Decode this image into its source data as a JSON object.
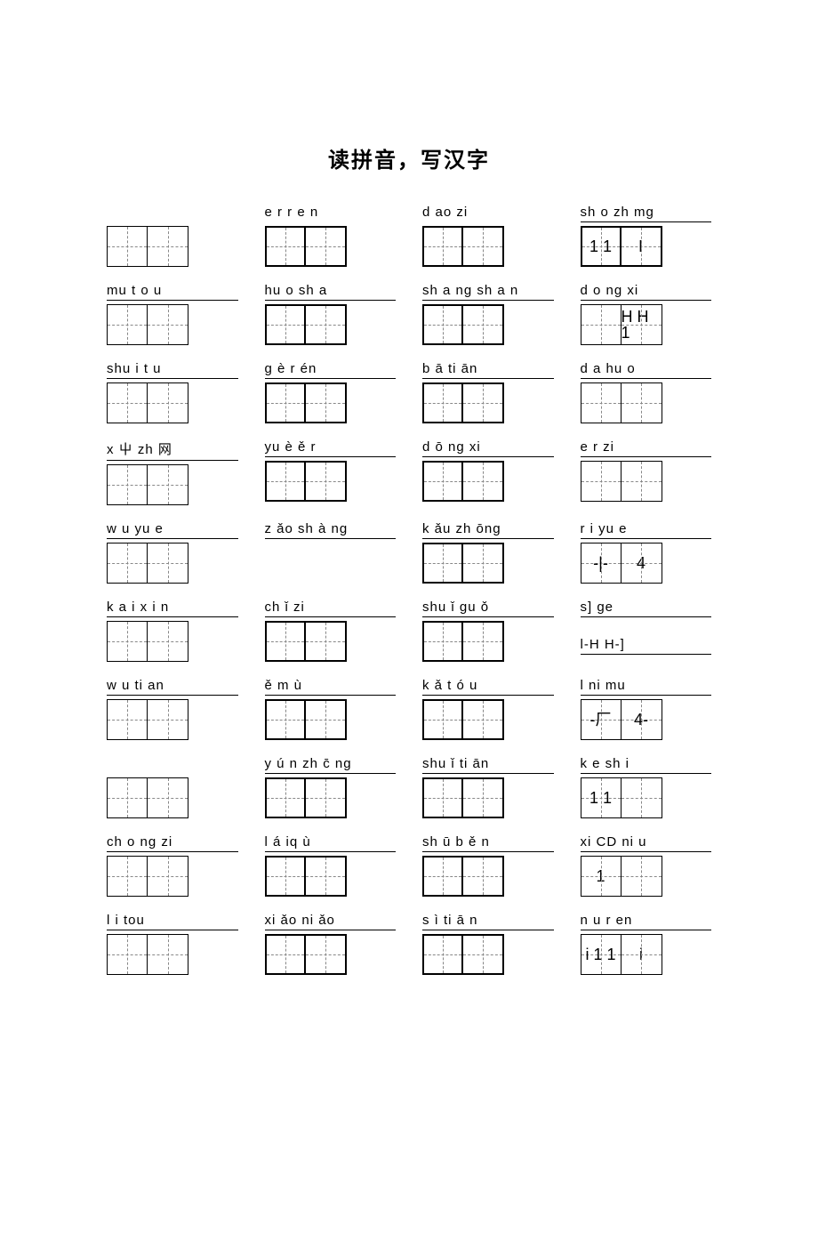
{
  "title": "读拼音，写汉字",
  "rows": [
    [
      {
        "pinyin": "",
        "boxes": 2,
        "thin": true,
        "underline": false
      },
      {
        "pinyin": "e r r e n",
        "boxes": 2,
        "underline": false
      },
      {
        "pinyin": "d ao zi",
        "boxes": 2,
        "underline": false
      },
      {
        "pinyin": "sh o zh mg",
        "boxes": 2,
        "glyphs": [
          "1 1",
          "I"
        ],
        "underline": true
      }
    ],
    [
      {
        "pinyin": "mu    t o u",
        "boxes": 2,
        "thin": true,
        "underline": true
      },
      {
        "pinyin": "hu o sh a",
        "boxes": 2,
        "underline": true
      },
      {
        "pinyin": "sh a ng sh a    n",
        "boxes": 2,
        "underline": true
      },
      {
        "pinyin": "d o ng xi",
        "boxes": 2,
        "glyphs": [
          "",
          "H H 1"
        ],
        "underline": true,
        "thin": true
      }
    ],
    [
      {
        "pinyin": "shu i t u",
        "boxes": 2,
        "thin": true,
        "underline": true
      },
      {
        "pinyin": "g è   r én",
        "boxes": 2,
        "underline": true
      },
      {
        "pinyin": "b ā ti ān",
        "boxes": 2,
        "underline": true
      },
      {
        "pinyin": "d a    hu o",
        "boxes": 2,
        "thin": true,
        "underline": true
      }
    ],
    [
      {
        "pinyin": "x 屮 zh 网",
        "boxes": 2,
        "thin": true,
        "underline": true
      },
      {
        "pinyin": "yu  è  ě  r",
        "boxes": 2,
        "underline": true
      },
      {
        "pinyin": "d ō  ng  xi",
        "boxes": 2,
        "underline": true
      },
      {
        "pinyin": "e r zi",
        "boxes": 2,
        "thin": true,
        "underline": true
      }
    ],
    [
      {
        "pinyin": "w u yu e",
        "boxes": 2,
        "thin": true,
        "underline": true
      },
      {
        "pinyin": "z ǎo   sh à ng",
        "boxes": 0,
        "underline": true
      },
      {
        "pinyin": "k ǎu  zh ōng",
        "boxes": 2,
        "underline": true
      },
      {
        "pinyin": "r i yu e",
        "boxes": 2,
        "glyphs": [
          "-|-",
          "4"
        ],
        "thin": true,
        "underline": true
      }
    ],
    [
      {
        "pinyin": "k a i x i n",
        "boxes": 2,
        "thin": true,
        "underline": true
      },
      {
        "pinyin": "ch ǐ   zi",
        "boxes": 2,
        "underline": true
      },
      {
        "pinyin": "shu ǐ   gu ǒ",
        "boxes": 2,
        "underline": true
      },
      {
        "pinyin": "s] ge",
        "boxes": 0,
        "extra": "l-H    H-]",
        "underline": true
      }
    ],
    [
      {
        "pinyin": "w u ti an",
        "boxes": 2,
        "thin": true,
        "underline": true
      },
      {
        "pinyin": "ě   m ù",
        "boxes": 2,
        "underline": true
      },
      {
        "pinyin": "k ǎ    t  ó  u",
        "boxes": 2,
        "underline": true
      },
      {
        "pinyin": "l ni      mu",
        "boxes": 2,
        "glyphs": [
          "-厂",
          "4-"
        ],
        "thin": true,
        "underline": true
      }
    ],
    [
      {
        "pinyin": "",
        "boxes": 2,
        "thin": true,
        "underline": false
      },
      {
        "pinyin": "y ú  n zh  c̄  ng",
        "boxes": 2,
        "underline": true
      },
      {
        "pinyin": "shu ǐ ti ān",
        "boxes": 2,
        "underline": true
      },
      {
        "pinyin": "k e sh i",
        "boxes": 2,
        "glyphs": [
          "1 1",
          ""
        ],
        "thin": true,
        "underline": true
      }
    ],
    [
      {
        "pinyin": "ch o ng zi",
        "boxes": 2,
        "thin": true,
        "underline": true
      },
      {
        "pinyin": "l   á iq ù",
        "boxes": 2,
        "underline": true
      },
      {
        "pinyin": "sh ū   b ě  n",
        "boxes": 2,
        "underline": true
      },
      {
        "pinyin": "xi CD   ni u",
        "boxes": 2,
        "glyphs": [
          "1",
          ""
        ],
        "thin": true,
        "underline": true
      }
    ],
    [
      {
        "pinyin": "l i tou",
        "boxes": 2,
        "thin": true,
        "underline": true
      },
      {
        "pinyin": "xi ǎo    ni ǎo",
        "boxes": 2,
        "underline": true
      },
      {
        "pinyin": "s ì    ti  ā n",
        "boxes": 2,
        "underline": true
      },
      {
        "pinyin": "n u r en",
        "boxes": 2,
        "glyphs": [
          "i 1 1",
          "i"
        ],
        "thin": true,
        "underline": true
      }
    ]
  ]
}
